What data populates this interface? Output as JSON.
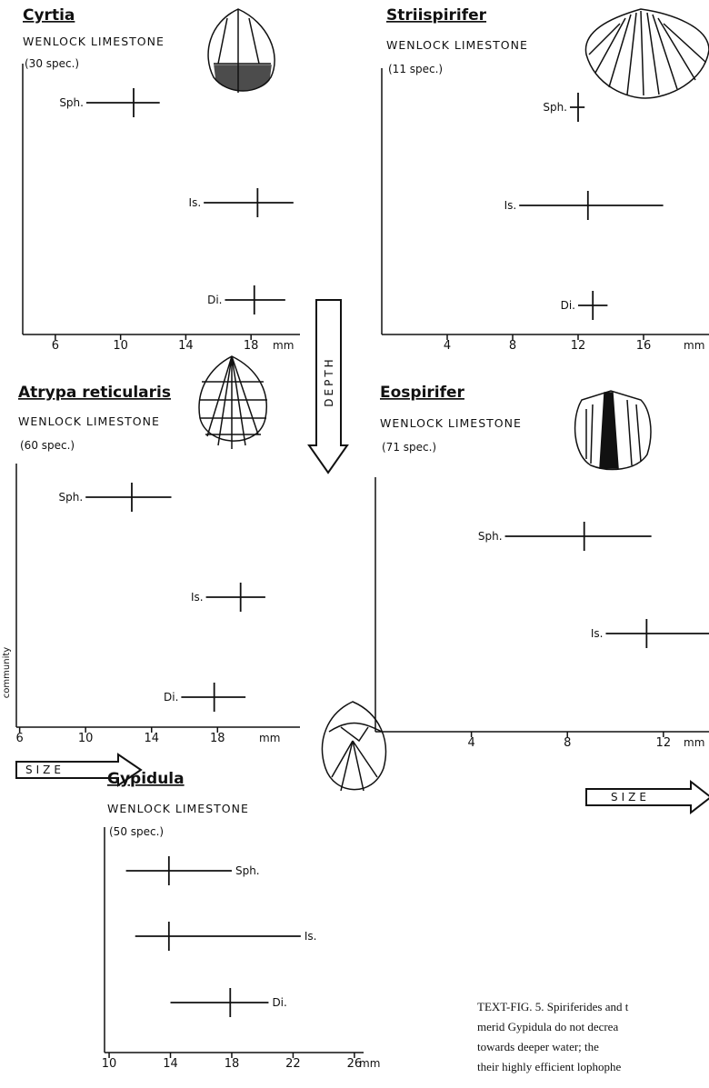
{
  "chart_data": [
    {
      "type": "range",
      "title": "Cyrtia",
      "subtitle": "WENLOCK LIMESTONE",
      "specimens": "(30 spec.)",
      "categories": [
        "Sph.",
        "Is.",
        "Di."
      ],
      "values": [
        10.8,
        18.4,
        18.2
      ],
      "lows": [
        7.9,
        15.1,
        16.4
      ],
      "highs": [
        12.4,
        20.6,
        20.1
      ],
      "xlim": [
        4,
        21
      ],
      "xticks": [
        6,
        10,
        14,
        18
      ],
      "xlabel": "mm"
    },
    {
      "type": "range",
      "title": "Striispirifer",
      "subtitle": "WENLOCK LIMESTONE",
      "specimens": "(11 spec.)",
      "categories": [
        "Sph.",
        "Is.",
        "Di."
      ],
      "values": [
        12.0,
        12.6,
        12.9
      ],
      "lows": [
        11.5,
        8.4,
        12.0
      ],
      "highs": [
        12.4,
        17.2,
        13.8
      ],
      "xlim": [
        0,
        20
      ],
      "xticks": [
        4,
        8,
        12,
        16
      ],
      "xlabel": "mm"
    },
    {
      "type": "range",
      "title": "Atrypa reticularis",
      "subtitle": "WENLOCK LIMESTONE",
      "specimens": "(60 spec.)",
      "categories": [
        "Sph.",
        "Is.",
        "Di."
      ],
      "values": [
        12.8,
        19.4,
        17.8
      ],
      "lows": [
        10.0,
        17.3,
        15.8
      ],
      "highs": [
        15.2,
        20.9,
        19.7
      ],
      "xlim": [
        5.8,
        23
      ],
      "xticks": [
        6,
        10,
        14,
        18
      ],
      "xlabel": "mm"
    },
    {
      "type": "range",
      "title": "Eospirifer",
      "subtitle": "WENLOCK LIMESTONE",
      "specimens": "(71 spec.)",
      "categories": [
        "Sph.",
        "Is."
      ],
      "values": [
        8.7,
        11.3
      ],
      "lows": [
        5.4,
        9.6
      ],
      "highs": [
        11.5,
        13.9
      ],
      "xlim": [
        0,
        13.9
      ],
      "xticks": [
        4,
        8,
        12
      ],
      "xlabel": "mm"
    },
    {
      "type": "range",
      "title": "Gypidula",
      "subtitle": "WENLOCK LIMESTONE",
      "specimens": "(50 spec.)",
      "categories": [
        "Sph.",
        "Is.",
        "Di."
      ],
      "values": [
        13.9,
        13.9,
        17.9
      ],
      "lows": [
        11.1,
        11.7,
        14.0
      ],
      "highs": [
        18.0,
        22.5,
        20.4
      ],
      "xlim": [
        9.7,
        26.6
      ],
      "xticks": [
        10,
        14,
        18,
        22,
        26
      ],
      "xlabel": "mm"
    }
  ],
  "annotations": {
    "depth": "DEPTH",
    "size": [
      "SIZE",
      "SIZE"
    ],
    "community": "community"
  },
  "caption": {
    "lines": [
      "TEXT-FIG. 5. Spiriferides and t",
      "merid Gypidula do not decrea",
      "towards deeper water; the",
      "their highly efficient lophophe"
    ]
  }
}
